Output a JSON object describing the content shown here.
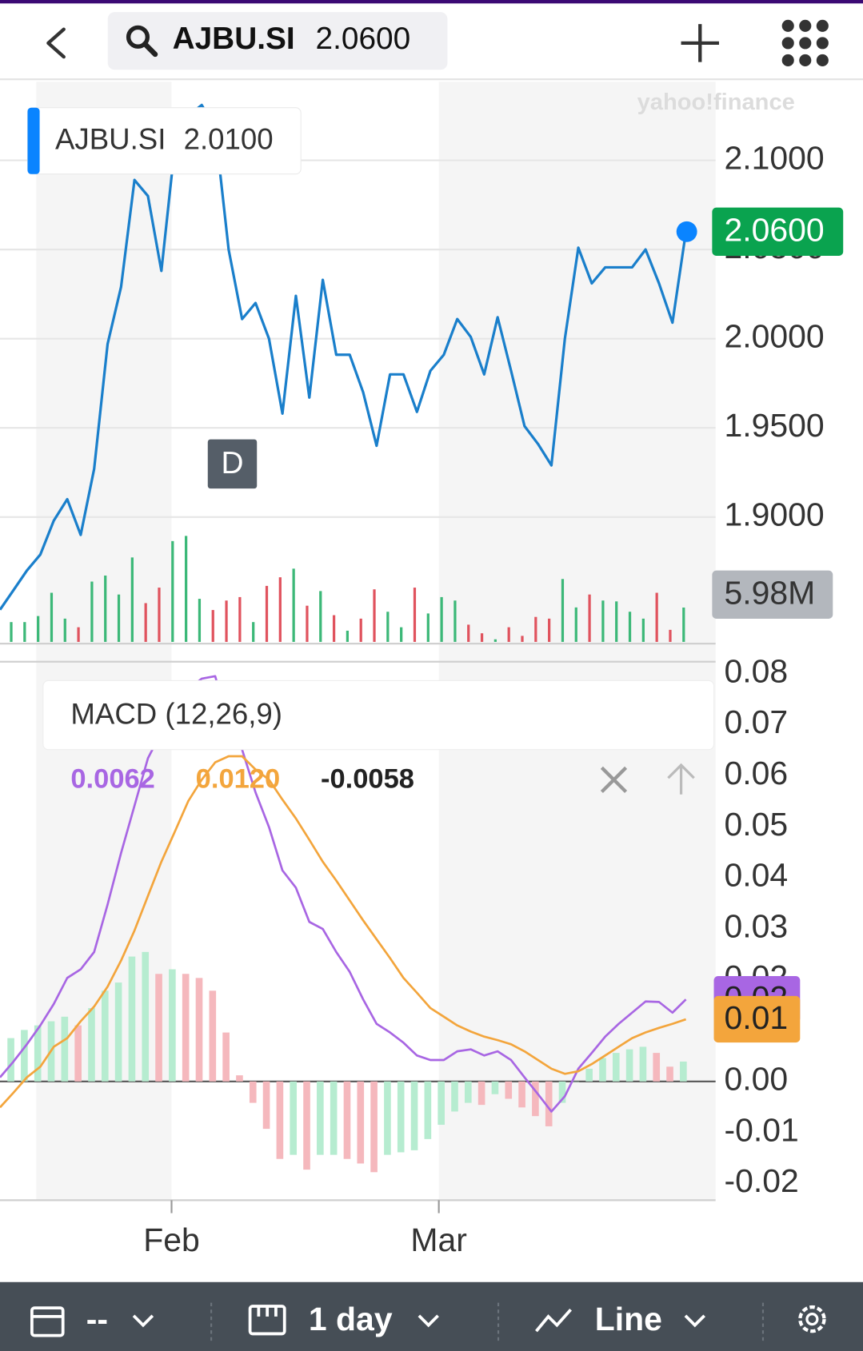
{
  "header": {
    "symbol": "AJBU.SI",
    "price": "2.0600"
  },
  "tooltip": {
    "symbol": "AJBU.SI",
    "price": "2.0100"
  },
  "watermark": "yahoo!finance",
  "interval_badge": "D",
  "x_axis": {
    "labels": [
      "Feb",
      "Mar"
    ]
  },
  "toolbar": {
    "range": "--",
    "interval": "1 day",
    "style": "Line"
  },
  "chart_data": [
    {
      "type": "line",
      "color": "#1a7fcb",
      "ylim": [
        1.83,
        2.144
      ],
      "yticks": [
        {
          "value": 2.1,
          "label": "2.1000"
        },
        {
          "value": 2.05,
          "label": "2.0500"
        },
        {
          "value": 2.0,
          "label": "2.0000"
        },
        {
          "value": 1.95,
          "label": "1.9500"
        },
        {
          "value": 1.9,
          "label": "1.9000"
        }
      ],
      "grid": true,
      "values": [
        1.848,
        1.859,
        1.87,
        1.879,
        1.898,
        1.91,
        1.89,
        1.927,
        1.997,
        2.029,
        2.089,
        2.08,
        2.038,
        2.108,
        2.125,
        2.131,
        2.118,
        2.05,
        2.011,
        2.02,
        2.0,
        1.958,
        2.024,
        1.967,
        2.033,
        1.991,
        1.991,
        1.97,
        1.94,
        1.98,
        1.98,
        1.959,
        1.982,
        1.991,
        2.011,
        2.001,
        1.98,
        2.012,
        1.982,
        1.951,
        1.941,
        1.929,
        2.0,
        2.051,
        2.031,
        2.04,
        2.04,
        2.04,
        2.05,
        2.031,
        2.009,
        2.06
      ],
      "last_label": "2.0600",
      "volume": {
        "ylim": [
          0,
          97.5
        ],
        "up_color": "#3cb878",
        "down_color": "#e0535e",
        "values": [
          null,
          3.45,
          3.45,
          4.5,
          8.55,
          4.05,
          2.55,
          10.5,
          11.55,
          8.25,
          14.7,
          6.75,
          9.45,
          17.55,
          18.45,
          7.5,
          5.55,
          7.2,
          7.8,
          3.45,
          9.75,
          11.25,
          12.75,
          6.3,
          8.85,
          4.65,
          1.95,
          4.05,
          9.15,
          5.25,
          2.55,
          9.45,
          4.95,
          7.8,
          7.2,
          3.0,
          1.5,
          0.45,
          2.55,
          1.05,
          4.35,
          4.05,
          10.95,
          6.0,
          8.25,
          7.2,
          7.05,
          5.25,
          4.05,
          8.55,
          2.1,
          5.98
        ],
        "last_label": "5.98M"
      }
    },
    {
      "type": "macd",
      "title": "MACD (12,26,9)",
      "ylim": [
        -0.0233,
        0.082
      ],
      "yticks": [
        0.08,
        0.07,
        0.06,
        0.05,
        0.04,
        0.03,
        0.02,
        0.01,
        {
          "value": 0,
          "label": "0.00"
        },
        -0.01,
        -0.02
      ],
      "grid": false,
      "series": [
        {
          "color": "#a866e3",
          "legend_value": "0.0062",
          "last_label": "0.02",
          "values": [
            0.0008,
            0.0039,
            0.0073,
            0.011,
            0.0152,
            0.0203,
            0.022,
            0.0254,
            0.0347,
            0.0448,
            0.0541,
            0.0634,
            0.0685,
            0.0744,
            0.077,
            0.079,
            0.0795,
            0.0702,
            0.0651,
            0.0567,
            0.0499,
            0.0414,
            0.038,
            0.0313,
            0.0299,
            0.0254,
            0.0215,
            0.0161,
            0.0113,
            0.0096,
            0.0076,
            0.0051,
            0.0042,
            0.0042,
            0.0059,
            0.0063,
            0.0051,
            0.0059,
            0.0042,
            0.0008,
            -0.0025,
            -0.0059,
            -0.0029,
            0.0025,
            0.0056,
            0.0088,
            0.0113,
            0.0135,
            0.0157,
            0.0156,
            0.0135,
            0.0161
          ]
        },
        {
          "color": "#f3a53c",
          "legend_value": "0.0120",
          "last_label": "0.01",
          "values": [
            -0.0051,
            -0.0022,
            0.0008,
            0.0029,
            0.0068,
            0.0085,
            0.0118,
            0.0147,
            0.0186,
            0.0237,
            0.0296,
            0.0364,
            0.0431,
            0.049,
            0.055,
            0.0592,
            0.0626,
            0.0638,
            0.0638,
            0.0612,
            0.0592,
            0.0553,
            0.0516,
            0.0474,
            0.0431,
            0.0394,
            0.0355,
            0.0316,
            0.0279,
            0.0242,
            0.0203,
            0.0174,
            0.0144,
            0.0127,
            0.011,
            0.0098,
            0.0088,
            0.0081,
            0.0073,
            0.0059,
            0.0042,
            0.0025,
            0.0015,
            0.002,
            0.0034,
            0.0051,
            0.0068,
            0.0085,
            0.0096,
            0.0105,
            0.0113,
            0.0122
          ]
        }
      ],
      "histogram": {
        "up_color": "#b6ecd0",
        "down_color": "#f5b8bd",
        "legend_value": "-0.0058",
        "values": [
          null,
          0.0085,
          0.0101,
          0.011,
          0.0118,
          0.0127,
          0.011,
          0.0144,
          0.0178,
          0.0194,
          0.0245,
          0.0254,
          0.0211,
          0.022,
          0.0211,
          0.0203,
          0.0178,
          0.0096,
          0.0012,
          -0.0042,
          -0.0093,
          -0.0152,
          -0.0144,
          -0.0173,
          -0.0144,
          -0.0144,
          -0.0152,
          -0.0161,
          -0.0178,
          -0.0144,
          -0.0139,
          -0.0135,
          -0.0113,
          -0.0085,
          -0.0059,
          -0.0042,
          -0.0046,
          -0.0025,
          -0.0034,
          -0.0051,
          -0.0068,
          -0.0088,
          -0.0042,
          0.0,
          0.0025,
          0.0046,
          0.0056,
          0.0063,
          0.0068,
          0.0056,
          0.0029,
          0.0039
        ]
      }
    }
  ]
}
